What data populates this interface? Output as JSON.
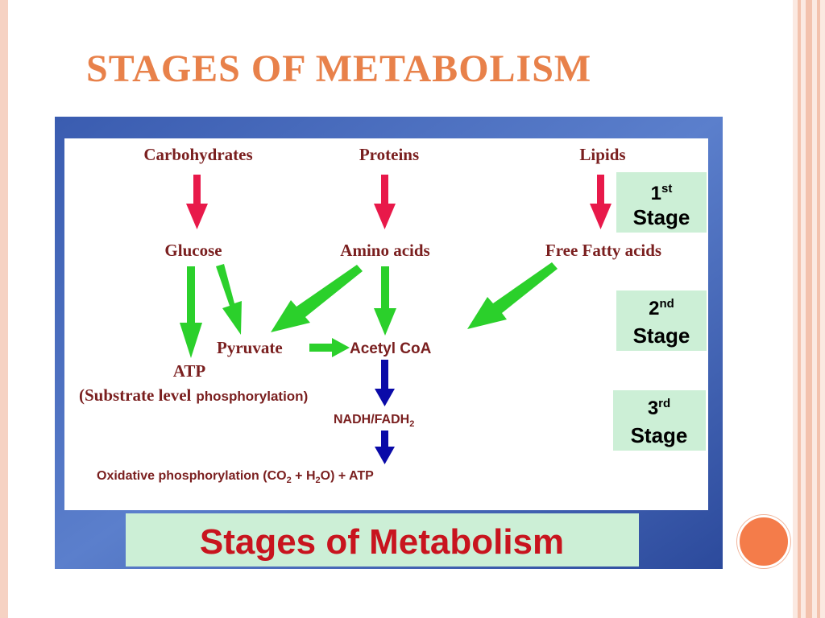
{
  "slide": {
    "title": "STAGES OF METABOLISM"
  },
  "diagram": {
    "sources": {
      "carbohydrates": "Carbohydrates",
      "proteins": "Proteins",
      "lipids": "Lipids"
    },
    "intermediates": {
      "glucose": "Glucose",
      "amino_acids": "Amino acids",
      "free_fatty_acids": "Free Fatty acids"
    },
    "pyruvate": "Pyruvate",
    "acetyl_coa": "Acetyl CoA",
    "atp": "ATP",
    "substrate_level": {
      "part1": "(Substrate level",
      "part2": "phosphorylation)"
    },
    "nadh": {
      "main": "NADH/FADH",
      "sub": "2"
    },
    "oxidative": {
      "part1": "Oxidative phosphorylation (CO",
      "sub1": "2",
      "part2": " + H",
      "sub2": "2",
      "part3": "O)  + ATP"
    },
    "stages": [
      {
        "num": "1",
        "sup": "st",
        "label": "Stage"
      },
      {
        "num": "2",
        "sup": "nd",
        "label": "Stage"
      },
      {
        "num": "3",
        "sup": "rd",
        "label": "Stage"
      }
    ],
    "banner": "Stages of Metabolism",
    "colors": {
      "red_arrow": "#e8194a",
      "green_arrow": "#2bd02b",
      "blue_arrow": "#0a0aa8",
      "source_text": "#7a1f1f",
      "banner_text": "#c8141e",
      "stage_box": "#ccefd6",
      "background": "#3d5fb3"
    }
  }
}
